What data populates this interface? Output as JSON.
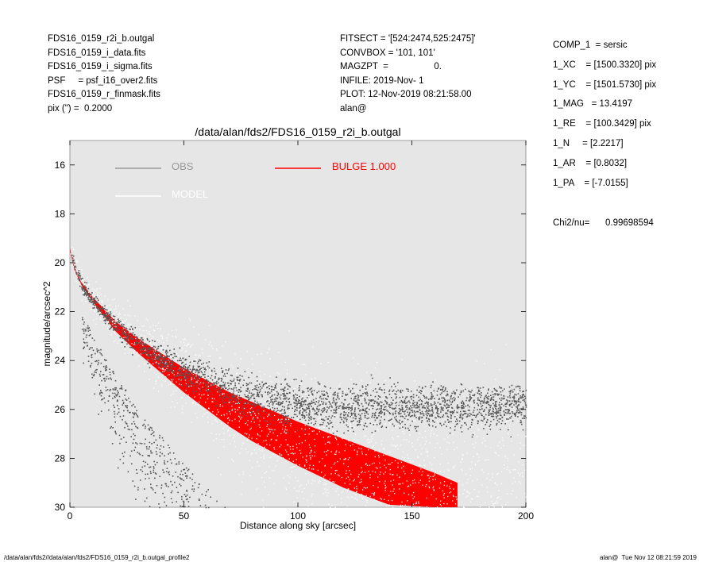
{
  "header_left": [
    "FDS16_0159_r2i_b.outgal",
    "FDS16_0159_i_data.fits",
    "FDS16_0159_i_sigma.fits",
    "PSF     = psf_i16_over2.fits",
    "FDS16_0159_r_finmask.fits",
    "pix (\") =  0.2000"
  ],
  "header_middle": [
    "FITSECT = '[524:2474,525:2475]'",
    "CONVBOX = '101, 101'",
    "MAGZPT  =                  0.",
    "INFILE: 2019-Nov- 1",
    "PLOT: 12-Nov-2019 08:21:58.00",
    "alan@"
  ],
  "params": [
    "COMP_1  = sersic",
    "1_XC    = [1500.3320] pix",
    "1_YC    = [1501.5730] pix",
    "1_MAG   = 13.4197",
    "1_RE    = [100.3429] pix",
    "1_N     = [2.2217]",
    "1_AR    = [0.8032]",
    "1_PA    = [-7.0155]"
  ],
  "chi2": {
    "label": "Chi2/nu=",
    "value": "0.99698594"
  },
  "footer_left": "/data/alan/fds2//data/alan/fds2/FDS16_0159_r2i_b.outgal_profile2",
  "footer_right": "alan@  Tue Nov 12 08:21:59 2019",
  "colors": {
    "obs": "#555555",
    "model": "#ffffff",
    "bulge": "#ff0000",
    "panel": "#e6e6e6"
  },
  "chart_data": {
    "type": "scatter",
    "title": "/data/alan/fds2/FDS16_0159_r2i_b.outgal",
    "xlabel": "Distance along sky [arcsec]",
    "ylabel": "magnitude/arcsec^2",
    "xlim": [
      0,
      200
    ],
    "ylim": [
      30,
      15
    ],
    "y_inverted": true,
    "x_ticks": [
      0,
      50,
      100,
      150,
      200
    ],
    "y_ticks": [
      16,
      18,
      20,
      22,
      24,
      26,
      28,
      30
    ],
    "legend": [
      {
        "name": "OBS",
        "color": "#999999"
      },
      {
        "name": "MODEL",
        "color": "#ffffff"
      },
      {
        "name": "BULGE  1.000",
        "color": "#ff0000"
      }
    ],
    "series": [
      {
        "name": "OBS",
        "kind": "points",
        "x": [
          0,
          2,
          5,
          10,
          20,
          30,
          40,
          50,
          60,
          70,
          80,
          100,
          120,
          150,
          180,
          200
        ],
        "y": [
          19.3,
          20.1,
          20.9,
          21.6,
          22.6,
          23.3,
          23.9,
          24.4,
          24.8,
          25.2,
          25.5,
          25.8,
          25.9,
          25.9,
          25.9,
          25.8
        ]
      },
      {
        "name": "MODEL",
        "kind": "points",
        "x": [
          0,
          2,
          5,
          10,
          20,
          30,
          40,
          50,
          60,
          70,
          80,
          100,
          120,
          150,
          170
        ],
        "y": [
          19.4,
          20.2,
          20.8,
          21.4,
          22.4,
          23.2,
          23.8,
          24.5,
          25.0,
          25.4,
          25.9,
          26.7,
          27.6,
          28.9,
          29.9
        ]
      },
      {
        "name": "BULGE  1.000",
        "kind": "band",
        "x": [
          0,
          2,
          5,
          10,
          20,
          30,
          40,
          50,
          60,
          70,
          80,
          100,
          120,
          140,
          160,
          170
        ],
        "y_upper": [
          19.4,
          20.2,
          20.8,
          21.4,
          22.4,
          23.1,
          23.7,
          24.3,
          24.8,
          25.3,
          25.7,
          26.5,
          27.2,
          27.9,
          28.6,
          29.0
        ],
        "y_lower": [
          19.5,
          20.3,
          20.9,
          21.6,
          22.8,
          23.7,
          24.5,
          25.3,
          26.0,
          26.7,
          27.3,
          28.3,
          29.2,
          29.9,
          30.0,
          30.0
        ]
      }
    ]
  }
}
